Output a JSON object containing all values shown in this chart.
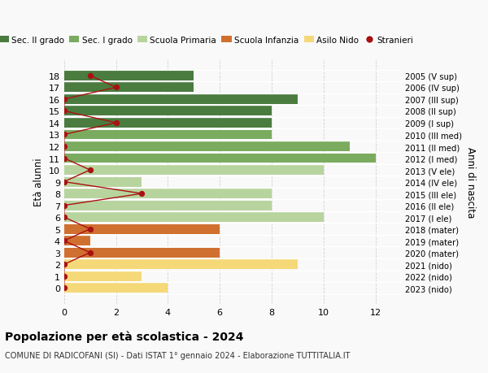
{
  "ages": [
    18,
    17,
    16,
    15,
    14,
    13,
    12,
    11,
    10,
    9,
    8,
    7,
    6,
    5,
    4,
    3,
    2,
    1,
    0
  ],
  "years": [
    "2005 (V sup)",
    "2006 (IV sup)",
    "2007 (III sup)",
    "2008 (II sup)",
    "2009 (I sup)",
    "2010 (III med)",
    "2011 (II med)",
    "2012 (I med)",
    "2013 (V ele)",
    "2014 (IV ele)",
    "2015 (III ele)",
    "2016 (II ele)",
    "2017 (I ele)",
    "2018 (mater)",
    "2019 (mater)",
    "2020 (mater)",
    "2021 (nido)",
    "2022 (nido)",
    "2023 (nido)"
  ],
  "bar_values": [
    5,
    5,
    9,
    8,
    8,
    8,
    11,
    12,
    10,
    3,
    8,
    8,
    10,
    6,
    1,
    6,
    9,
    3,
    4
  ],
  "bar_colors": [
    "#4a7c3f",
    "#4a7c3f",
    "#4a7c3f",
    "#4a7c3f",
    "#4a7c3f",
    "#7aab5f",
    "#7aab5f",
    "#7aab5f",
    "#b8d49e",
    "#b8d49e",
    "#b8d49e",
    "#b8d49e",
    "#b8d49e",
    "#d07030",
    "#d07030",
    "#d07030",
    "#f5d878",
    "#f5d878",
    "#f5d878"
  ],
  "stranieri_values": [
    1,
    2,
    0,
    0,
    2,
    0,
    0,
    0,
    1,
    0,
    3,
    0,
    0,
    1,
    0,
    1,
    0,
    0,
    0
  ],
  "title": "Popolazione per età scolastica - 2024",
  "subtitle": "COMUNE DI RADICOFANI (SI) - Dati ISTAT 1° gennaio 2024 - Elaborazione TUTTITALIA.IT",
  "ylabel": "Età alunni",
  "right_ylabel": "Anni di nascita",
  "legend_labels": [
    "Sec. II grado",
    "Sec. I grado",
    "Scuola Primaria",
    "Scuola Infanzia",
    "Asilo Nido",
    "Stranieri"
  ],
  "legend_colors": [
    "#4a7c3f",
    "#7aab5f",
    "#b8d49e",
    "#d07030",
    "#f5d878",
    "#aa1111"
  ],
  "xlim": [
    0,
    13
  ],
  "background_color": "#f9f9f9",
  "grid_color": "#d0d0d0"
}
